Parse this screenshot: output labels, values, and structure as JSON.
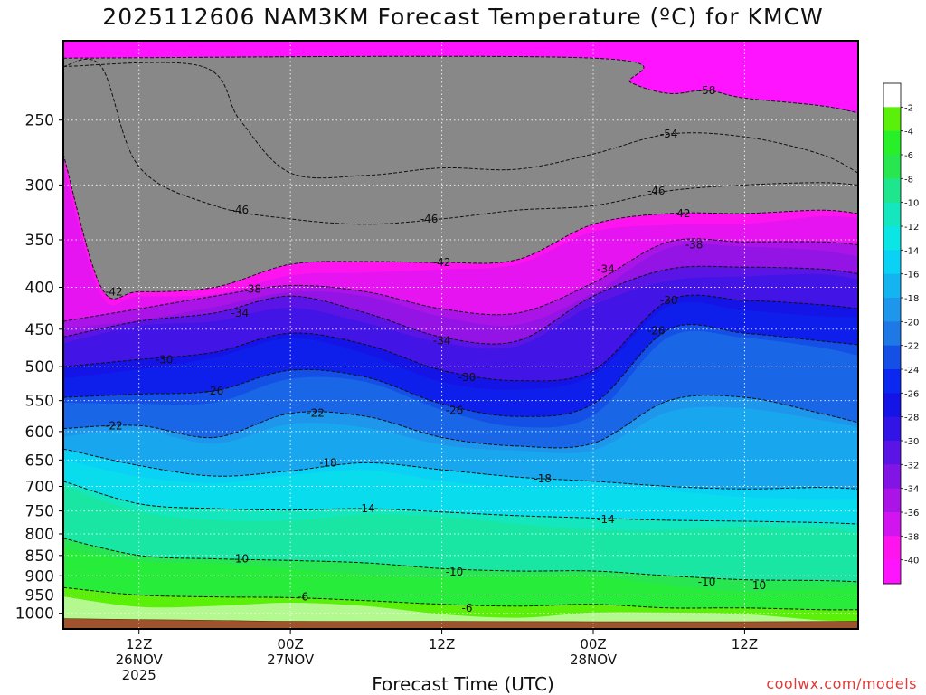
{
  "title": "2025112606 NAM3KM Forecast Temperature (ºC) for KMCW",
  "xlabel": "Forecast Time (UTC)",
  "credit": "coolwx.com/models",
  "chart_data": {
    "type": "heatmap",
    "title": "2025112606 NAM3KM Forecast Temperature (ºC) for KMCW",
    "xlabel": "Forecast Time (UTC)",
    "ylabel": "",
    "y_scale": "log",
    "y_inverted": true,
    "ylim": [
      1045,
      200
    ],
    "xlim": [
      "2025-11-26T06Z",
      "2025-11-28T21Z"
    ],
    "x_ticks": [
      {
        "time": "2025-11-26T12Z",
        "lines": [
          "12Z",
          "26NOV",
          "2025"
        ]
      },
      {
        "time": "2025-11-27T00Z",
        "lines": [
          "00Z",
          "27NOV"
        ]
      },
      {
        "time": "2025-11-27T12Z",
        "lines": [
          "12Z"
        ]
      },
      {
        "time": "2025-11-28T00Z",
        "lines": [
          "00Z",
          "28NOV"
        ]
      },
      {
        "time": "2025-11-28T12Z",
        "lines": [
          "12Z"
        ]
      }
    ],
    "y_ticks": [
      250,
      300,
      350,
      400,
      450,
      500,
      550,
      600,
      650,
      700,
      750,
      800,
      850,
      900,
      950,
      1000
    ],
    "grid": "dotted",
    "ground_color": "#a0522d",
    "colorbar": {
      "placement": "right",
      "levels": [
        {
          "label": "-2",
          "color": "#ffffff"
        },
        {
          "label": "-4",
          "color": "#5af00a"
        },
        {
          "label": "-6",
          "color": "#28f028"
        },
        {
          "label": "-8",
          "color": "#28e650"
        },
        {
          "label": "-10",
          "color": "#1ee68c"
        },
        {
          "label": "-12",
          "color": "#14e6be"
        },
        {
          "label": "-14",
          "color": "#0ae6e6"
        },
        {
          "label": "-16",
          "color": "#0ad2f5"
        },
        {
          "label": "-18",
          "color": "#14b4f0"
        },
        {
          "label": "-20",
          "color": "#1e96eb"
        },
        {
          "label": "-22",
          "color": "#1e78e6"
        },
        {
          "label": "-24",
          "color": "#1450e6"
        },
        {
          "label": "-26",
          "color": "#0a28f0"
        },
        {
          "label": "-28",
          "color": "#1414e6"
        },
        {
          "label": "-30",
          "color": "#3214e6"
        },
        {
          "label": "-32",
          "color": "#5a14e6"
        },
        {
          "label": "-34",
          "color": "#8214e6"
        },
        {
          "label": "-36",
          "color": "#aa14e6"
        },
        {
          "label": "-38",
          "color": "#d214f0"
        },
        {
          "label": "-40",
          "color": "#ff14f0"
        },
        {
          "label": "",
          "color": "#ff14ff"
        }
      ]
    },
    "series": [
      {
        "label": "-6",
        "label_positions": [
          {
            "time": "2025-11-27T01Z",
            "p": 955
          },
          {
            "time": "2025-11-27T14Z",
            "p": 985
          }
        ],
        "x": [
          "2025-11-26T06Z",
          "2025-11-26T12Z",
          "2025-11-26T18Z",
          "2025-11-27T00Z",
          "2025-11-27T06Z",
          "2025-11-27T12Z",
          "2025-11-27T18Z",
          "2025-11-28T00Z",
          "2025-11-28T06Z",
          "2025-11-28T12Z",
          "2025-11-28T18Z",
          "2025-11-28T21Z"
        ],
        "y": [
          930,
          950,
          955,
          957,
          965,
          975,
          980,
          975,
          985,
          985,
          990,
          990
        ]
      },
      {
        "label": "-10",
        "label_positions": [
          {
            "time": "2025-11-26T20Z",
            "p": 858
          },
          {
            "time": "2025-11-27T13Z",
            "p": 890
          },
          {
            "time": "2025-11-28T09Z",
            "p": 915
          },
          {
            "time": "2025-11-28T13Z",
            "p": 925
          }
        ],
        "x": [
          "2025-11-26T06Z",
          "2025-11-26T12Z",
          "2025-11-26T18Z",
          "2025-11-27T00Z",
          "2025-11-27T06Z",
          "2025-11-27T12Z",
          "2025-11-27T18Z",
          "2025-11-28T00Z",
          "2025-11-28T06Z",
          "2025-11-28T12Z",
          "2025-11-28T18Z",
          "2025-11-28T21Z"
        ],
        "y": [
          810,
          850,
          858,
          862,
          868,
          882,
          888,
          888,
          900,
          910,
          912,
          915
        ]
      },
      {
        "label": "-14",
        "label_positions": [
          {
            "time": "2025-11-27T06Z",
            "p": 745
          },
          {
            "time": "2025-11-28T01Z",
            "p": 768
          }
        ],
        "x": [
          "2025-11-26T06Z",
          "2025-11-26T12Z",
          "2025-11-26T18Z",
          "2025-11-27T00Z",
          "2025-11-27T06Z",
          "2025-11-27T12Z",
          "2025-11-27T18Z",
          "2025-11-28T00Z",
          "2025-11-28T06Z",
          "2025-11-28T12Z",
          "2025-11-28T18Z",
          "2025-11-28T21Z"
        ],
        "y": [
          690,
          735,
          745,
          748,
          745,
          752,
          760,
          765,
          770,
          772,
          775,
          778
        ]
      },
      {
        "label": "-18",
        "label_positions": [
          {
            "time": "2025-11-27T03Z",
            "p": 655
          },
          {
            "time": "2025-11-27T20Z",
            "p": 685
          }
        ],
        "x": [
          "2025-11-26T06Z",
          "2025-11-26T12Z",
          "2025-11-26T18Z",
          "2025-11-27T00Z",
          "2025-11-27T06Z",
          "2025-11-27T12Z",
          "2025-11-27T18Z",
          "2025-11-28T00Z",
          "2025-11-28T06Z",
          "2025-11-28T12Z",
          "2025-11-28T18Z",
          "2025-11-28T21Z"
        ],
        "y": [
          630,
          660,
          680,
          670,
          655,
          668,
          682,
          690,
          700,
          705,
          702,
          705
        ]
      },
      {
        "label": "-22",
        "label_positions": [
          {
            "time": "2025-11-26T10Z",
            "p": 590
          },
          {
            "time": "2025-11-27T02Z",
            "p": 570
          }
        ],
        "x": [
          "2025-11-26T06Z",
          "2025-11-26T12Z",
          "2025-11-26T18Z",
          "2025-11-27T00Z",
          "2025-11-27T06Z",
          "2025-11-27T12Z",
          "2025-11-27T18Z",
          "2025-11-28T00Z",
          "2025-11-28T06Z",
          "2025-11-28T12Z",
          "2025-11-28T18Z",
          "2025-11-28T21Z"
        ],
        "y": [
          595,
          590,
          610,
          570,
          575,
          610,
          625,
          620,
          550,
          545,
          570,
          585
        ]
      },
      {
        "label": "-26",
        "label_positions": [
          {
            "time": "2025-11-26T18Z",
            "p": 535
          },
          {
            "time": "2025-11-27T13Z",
            "p": 565
          },
          {
            "time": "2025-11-28T05Z",
            "p": 452
          }
        ],
        "x": [
          "2025-11-26T06Z",
          "2025-11-26T12Z",
          "2025-11-26T18Z",
          "2025-11-27T00Z",
          "2025-11-27T06Z",
          "2025-11-27T12Z",
          "2025-11-27T18Z",
          "2025-11-28T00Z",
          "2025-11-28T06Z",
          "2025-11-28T12Z",
          "2025-11-28T18Z",
          "2025-11-28T21Z"
        ],
        "y": [
          545,
          540,
          535,
          505,
          515,
          555,
          575,
          555,
          450,
          455,
          465,
          470
        ]
      },
      {
        "label": "-30",
        "label_positions": [
          {
            "time": "2025-11-26T14Z",
            "p": 490
          },
          {
            "time": "2025-11-27T14Z",
            "p": 515
          },
          {
            "time": "2025-11-28T06Z",
            "p": 415
          }
        ],
        "x": [
          "2025-11-26T06Z",
          "2025-11-26T12Z",
          "2025-11-26T18Z",
          "2025-11-27T00Z",
          "2025-11-27T06Z",
          "2025-11-27T12Z",
          "2025-11-27T18Z",
          "2025-11-28T00Z",
          "2025-11-28T06Z",
          "2025-11-28T12Z",
          "2025-11-28T18Z",
          "2025-11-28T21Z"
        ],
        "y": [
          500,
          490,
          480,
          455,
          470,
          505,
          520,
          505,
          415,
          415,
          420,
          425
        ]
      },
      {
        "label": "-34",
        "label_positions": [
          {
            "time": "2025-11-26T20Z",
            "p": 430
          },
          {
            "time": "2025-11-27T12Z",
            "p": 465
          },
          {
            "time": "2025-11-28T01Z",
            "p": 380
          }
        ],
        "x": [
          "2025-11-26T06Z",
          "2025-11-26T12Z",
          "2025-11-26T18Z",
          "2025-11-27T00Z",
          "2025-11-27T06Z",
          "2025-11-27T12Z",
          "2025-11-27T18Z",
          "2025-11-28T00Z",
          "2025-11-28T06Z",
          "2025-11-28T12Z",
          "2025-11-28T18Z",
          "2025-11-28T21Z"
        ],
        "y": [
          460,
          440,
          430,
          410,
          430,
          460,
          465,
          410,
          380,
          378,
          380,
          385
        ]
      },
      {
        "label": "-38",
        "label_positions": [
          {
            "time": "2025-11-26T21Z",
            "p": 402
          },
          {
            "time": "2025-11-28T08Z",
            "p": 355
          }
        ],
        "x": [
          "2025-11-26T06Z",
          "2025-11-26T12Z",
          "2025-11-26T18Z",
          "2025-11-27T00Z",
          "2025-11-27T06Z",
          "2025-11-27T12Z",
          "2025-11-27T18Z",
          "2025-11-28T00Z",
          "2025-11-28T06Z",
          "2025-11-28T12Z",
          "2025-11-28T18Z",
          "2025-11-28T21Z"
        ],
        "y": [
          440,
          425,
          410,
          398,
          405,
          425,
          430,
          395,
          352,
          352,
          352,
          355
        ]
      },
      {
        "label": "-42",
        "label_positions": [
          {
            "time": "2025-11-26T10Z",
            "p": 405
          },
          {
            "time": "2025-11-27T12Z",
            "p": 373
          },
          {
            "time": "2025-11-28T07Z",
            "p": 325
          }
        ],
        "x": [
          "2025-11-26T06Z",
          "2025-11-26T09Z",
          "2025-11-26T12Z",
          "2025-11-26T18Z",
          "2025-11-27T00Z",
          "2025-11-27T06Z",
          "2025-11-27T12Z",
          "2025-11-27T18Z",
          "2025-11-28T00Z",
          "2025-11-28T06Z",
          "2025-11-28T12Z",
          "2025-11-28T18Z",
          "2025-11-28T21Z"
        ],
        "y": [
          275,
          400,
          405,
          400,
          375,
          372,
          373,
          370,
          335,
          325,
          325,
          322,
          325
        ]
      },
      {
        "label": "-46",
        "label_positions": [
          {
            "time": "2025-11-26T20Z",
            "p": 322
          },
          {
            "time": "2025-11-27T11Z",
            "p": 330
          },
          {
            "time": "2025-11-28T05Z",
            "p": 305
          }
        ],
        "x": [
          "2025-11-26T09Z",
          "2025-11-26T12Z",
          "2025-11-26T18Z",
          "2025-11-27T00Z",
          "2025-11-27T06Z",
          "2025-11-27T12Z",
          "2025-11-27T18Z",
          "2025-11-28T00Z",
          "2025-11-28T06Z",
          "2025-11-28T12Z",
          "2025-11-28T18Z",
          "2025-11-28T21Z"
        ],
        "y": [
          215,
          285,
          318,
          330,
          335,
          330,
          322,
          318,
          305,
          300,
          298,
          300
        ]
      },
      {
        "label": "-54",
        "label_positions": [
          {
            "time": "2025-11-28T06Z",
            "p": 260
          }
        ],
        "x": [
          "2025-11-26T17Z",
          "2025-11-26T20Z",
          "2025-11-27T00Z",
          "2025-11-27T06Z",
          "2025-11-27T12Z",
          "2025-11-27T18Z",
          "2025-11-28T00Z",
          "2025-11-28T06Z",
          "2025-11-28T12Z",
          "2025-11-28T18Z",
          "2025-11-28T21Z"
        ],
        "y": [
          215,
          250,
          290,
          292,
          286,
          287,
          275,
          260,
          262,
          275,
          290
        ]
      },
      {
        "label": "-58",
        "label_positions": [
          {
            "time": "2025-11-28T09Z",
            "p": 230
          }
        ],
        "x": [
          "2025-11-28T00Z",
          "2025-11-28T03Z",
          "2025-11-28T06Z",
          "2025-11-28T09Z",
          "2025-11-28T12Z",
          "2025-11-28T18Z",
          "2025-11-28T21Z"
        ],
        "y": [
          210,
          225,
          232,
          230,
          235,
          240,
          245
        ]
      }
    ]
  }
}
